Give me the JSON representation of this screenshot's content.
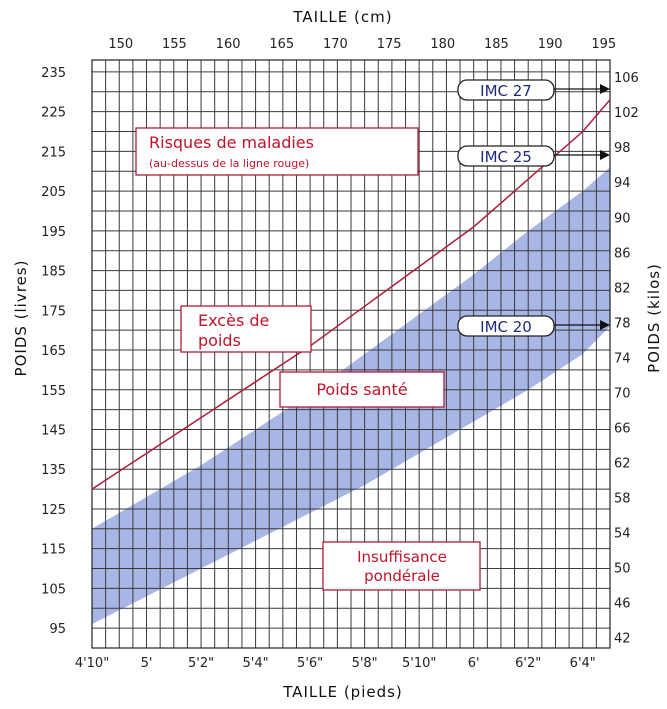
{
  "chart_data": {
    "type": "area",
    "top_axis": {
      "label": "TAILLE (cm)",
      "ticks": [
        "150",
        "155",
        "160",
        "165",
        "170",
        "175",
        "180",
        "185",
        "190",
        "195"
      ]
    },
    "bottom_axis": {
      "label": "TAILLE (pieds)",
      "ticks": [
        "4'10\"",
        "5'",
        "5'2\"",
        "5'4\"",
        "5'6\"",
        "5'8\"",
        "5'10\"",
        "6'",
        "6'2\"",
        "6'4\""
      ]
    },
    "left_axis": {
      "label": "POIDS (livres)",
      "ticks": [
        "235",
        "225",
        "215",
        "205",
        "195",
        "185",
        "175",
        "165",
        "155",
        "145",
        "135",
        "125",
        "115",
        "105",
        "95"
      ],
      "ylim": [
        90,
        238
      ]
    },
    "right_axis": {
      "label": "POIDS (kilos)",
      "ticks": [
        "106",
        "102",
        "98",
        "94",
        "90",
        "86",
        "82",
        "78",
        "74",
        "70",
        "66",
        "62",
        "58",
        "54",
        "50",
        "46",
        "42"
      ]
    },
    "xlim_inches": [
      58,
      77
    ],
    "grid": true,
    "series": [
      {
        "kind": "band",
        "color": "#a8b6e6",
        "x": [
          58,
          60,
          62,
          64,
          66,
          68,
          70,
          72,
          74,
          76,
          77
        ],
        "lower": [
          96,
          103,
          110,
          117,
          124,
          131,
          139,
          147,
          155,
          164,
          171
        ],
        "upper": [
          120,
          128,
          136,
          145,
          154,
          164,
          174,
          184,
          195,
          205,
          211
        ]
      },
      {
        "kind": "line",
        "color": "#b01c38",
        "x": [
          58,
          60,
          62,
          64,
          66,
          68,
          70,
          72,
          74,
          76,
          77
        ],
        "y": [
          130,
          139,
          148,
          157,
          166,
          176,
          186,
          196,
          208,
          220,
          228
        ]
      }
    ],
    "annotations": [
      {
        "id": "risques",
        "lines": [
          "Risques de maladies",
          "(au-dessus de la ligne rouge)"
        ]
      },
      {
        "id": "exces",
        "lines": [
          "Excès de",
          "poids"
        ]
      },
      {
        "id": "sante",
        "lines": [
          "Poids santé"
        ]
      },
      {
        "id": "insuffisance",
        "lines": [
          "Insuffisance",
          "pondérale"
        ]
      },
      {
        "id": "imc27",
        "lines": [
          "IMC 27"
        ]
      },
      {
        "id": "imc25",
        "lines": [
          "IMC 25"
        ]
      },
      {
        "id": "imc20",
        "lines": [
          "IMC 20"
        ]
      }
    ]
  }
}
